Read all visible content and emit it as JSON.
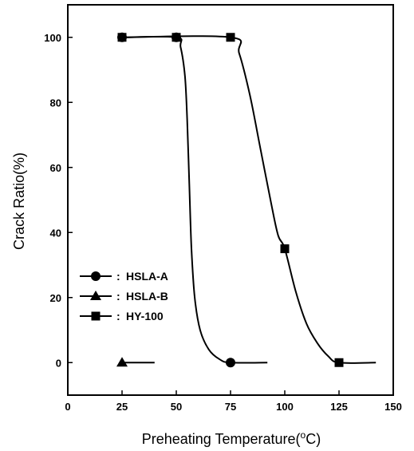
{
  "chart_data": {
    "type": "line",
    "xlabel": "Preheating Temperature(",
    "xlabel_sup": "o",
    "xlabel_tail": "C)",
    "ylabel": "Crack Ratio(%)",
    "xlim": [
      0,
      150
    ],
    "ylim": [
      -10,
      110
    ],
    "xticks": [
      0,
      25,
      50,
      75,
      100,
      125,
      150
    ],
    "yticks": [
      0,
      20,
      40,
      60,
      80,
      100
    ],
    "grid": false,
    "legend_position": "lower-left",
    "legend_separator": ":",
    "series": [
      {
        "name": "HSLA-A",
        "marker": "circle",
        "x": [
          25,
          50,
          75
        ],
        "y": [
          100,
          100,
          0
        ],
        "curve": [
          [
            25,
            100
          ],
          [
            50,
            100
          ],
          [
            52,
            97
          ],
          [
            54,
            88
          ],
          [
            55,
            75
          ],
          [
            56,
            55
          ],
          [
            57,
            35
          ],
          [
            58.5,
            20
          ],
          [
            61,
            10
          ],
          [
            65,
            4
          ],
          [
            70,
            1
          ],
          [
            75,
            0
          ],
          [
            92,
            0
          ]
        ]
      },
      {
        "name": "HSLA-B",
        "marker": "triangle",
        "x": [
          25
        ],
        "y": [
          0
        ],
        "curve": [
          [
            25,
            0
          ],
          [
            40,
            0
          ]
        ]
      },
      {
        "name": "HY-100",
        "marker": "square",
        "x": [
          25,
          50,
          75,
          100,
          125
        ],
        "y": [
          100,
          100,
          100,
          35,
          0
        ],
        "curve": [
          [
            25,
            100
          ],
          [
            75,
            100
          ],
          [
            79,
            95
          ],
          [
            84,
            82
          ],
          [
            89,
            65
          ],
          [
            94,
            48
          ],
          [
            97,
            39
          ],
          [
            100,
            35
          ],
          [
            105,
            22
          ],
          [
            110,
            12
          ],
          [
            115,
            6
          ],
          [
            120,
            2
          ],
          [
            125,
            0
          ],
          [
            142,
            0
          ]
        ]
      }
    ]
  }
}
